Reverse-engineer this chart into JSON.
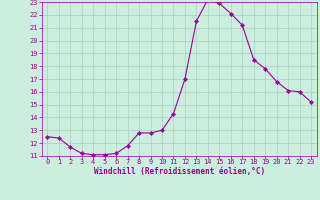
{
  "x": [
    0,
    1,
    2,
    3,
    4,
    5,
    6,
    7,
    8,
    9,
    10,
    11,
    12,
    13,
    14,
    15,
    16,
    17,
    18,
    19,
    20,
    21,
    22,
    23
  ],
  "y": [
    12.5,
    12.4,
    11.7,
    11.2,
    11.1,
    11.1,
    11.2,
    11.8,
    12.8,
    12.8,
    13.0,
    14.3,
    17.0,
    21.5,
    23.2,
    22.9,
    22.1,
    21.2,
    18.5,
    17.8,
    16.8,
    16.1,
    16.0,
    15.2
  ],
  "line_color": "#990099",
  "marker": "D",
  "marker_size": 2.2,
  "bg_color": "#cceedd",
  "grid_color": "#aacccc",
  "xlabel": "Windchill (Refroidissement éolien,°C)",
  "xlabel_color": "#990099",
  "tick_color": "#990099",
  "ylim": [
    11,
    23
  ],
  "xlim": [
    -0.5,
    23.5
  ],
  "yticks": [
    11,
    12,
    13,
    14,
    15,
    16,
    17,
    18,
    19,
    20,
    21,
    22,
    23
  ],
  "xticks": [
    0,
    1,
    2,
    3,
    4,
    5,
    6,
    7,
    8,
    9,
    10,
    11,
    12,
    13,
    14,
    15,
    16,
    17,
    18,
    19,
    20,
    21,
    22,
    23
  ],
  "font_family": "monospace",
  "font_size_ticks": 5.0,
  "font_size_xlabel": 5.5
}
